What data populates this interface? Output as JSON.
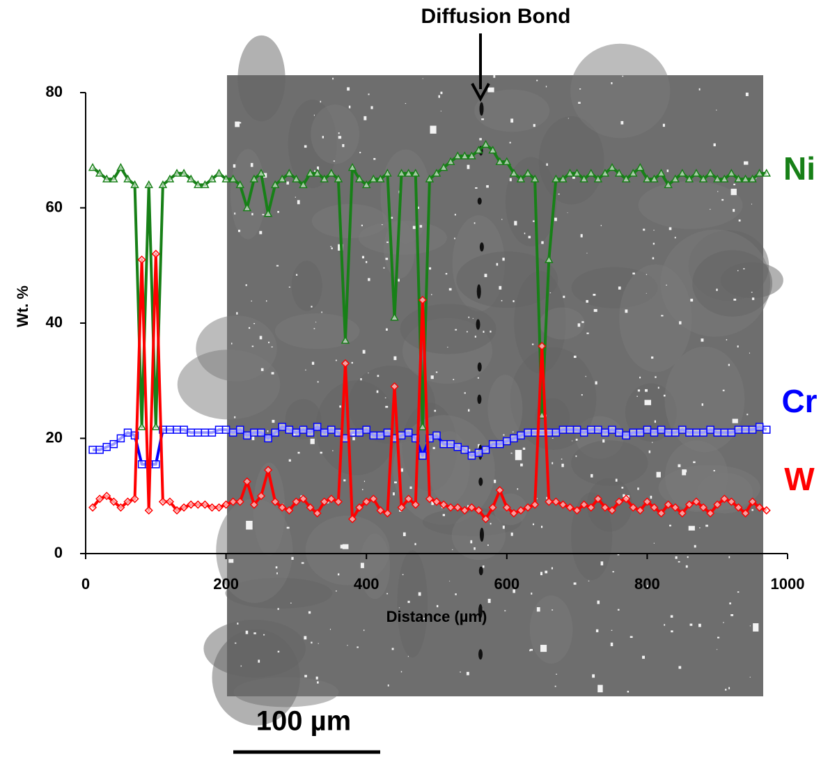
{
  "chart_data": {
    "type": "line",
    "annotation": "Diffusion Bond",
    "x_label": "Distance (µm)",
    "y_label": "Wt. %",
    "scale_bar_label": "100 µm",
    "xlim": [
      0,
      1000
    ],
    "xticks": [
      0,
      200,
      400,
      600,
      800,
      1000
    ],
    "ylim": [
      0,
      80
    ],
    "yticks": [
      0,
      20,
      40,
      60,
      80
    ],
    "x": [
      10,
      20,
      30,
      40,
      50,
      60,
      70,
      80,
      90,
      100,
      110,
      120,
      130,
      140,
      150,
      160,
      170,
      180,
      190,
      200,
      210,
      220,
      230,
      240,
      250,
      260,
      270,
      280,
      290,
      300,
      310,
      320,
      330,
      340,
      350,
      360,
      370,
      380,
      390,
      400,
      410,
      420,
      430,
      440,
      450,
      460,
      470,
      480,
      490,
      500,
      510,
      520,
      530,
      540,
      550,
      560,
      570,
      580,
      590,
      600,
      610,
      620,
      630,
      640,
      650,
      660,
      670,
      680,
      690,
      700,
      710,
      720,
      730,
      740,
      750,
      760,
      770,
      780,
      790,
      800,
      810,
      820,
      830,
      840,
      850,
      860,
      870,
      880,
      890,
      900,
      910,
      920,
      930,
      940,
      950,
      960,
      970
    ],
    "series": [
      {
        "name": "Ni",
        "color": "#178017",
        "marker": "triangle",
        "values": [
          67,
          66,
          65,
          65,
          67,
          65,
          64,
          22,
          64,
          22,
          64,
          65,
          66,
          66,
          65,
          64,
          64,
          65,
          66,
          65,
          65,
          64,
          60,
          65,
          66,
          59,
          64,
          65,
          66,
          65,
          64,
          66,
          66,
          65,
          66,
          65,
          37,
          67,
          65,
          64,
          65,
          65,
          66,
          41,
          66,
          66,
          66,
          22,
          65,
          66,
          67,
          68,
          69,
          69,
          69,
          70,
          71,
          70,
          68,
          68,
          66,
          65,
          66,
          65,
          24,
          51,
          65,
          65,
          66,
          66,
          65,
          66,
          65,
          66,
          67,
          66,
          65,
          66,
          67,
          65,
          65,
          66,
          64,
          65,
          66,
          65,
          66,
          65,
          66,
          65,
          65,
          66,
          65,
          65,
          65,
          66,
          66
        ]
      },
      {
        "name": "Cr",
        "color": "#0000ff",
        "marker": "square",
        "values": [
          18,
          18,
          18.5,
          19,
          20,
          21,
          20.5,
          15.5,
          15.5,
          15.5,
          21.5,
          21.5,
          21.5,
          21.5,
          21,
          21,
          21,
          21,
          21.5,
          21.5,
          21,
          21.5,
          20.5,
          21,
          21,
          20,
          21,
          22,
          21.5,
          21,
          21.5,
          21,
          22,
          21,
          21.5,
          21,
          20,
          21,
          21,
          21.5,
          20.5,
          20.5,
          21,
          20,
          20.5,
          21,
          20,
          17,
          20,
          20.5,
          19,
          19,
          18.5,
          18,
          17,
          17.5,
          18,
          19,
          19,
          19.5,
          20,
          20.5,
          21,
          21,
          21,
          21,
          21,
          21.5,
          21.5,
          21.5,
          21,
          21.5,
          21.5,
          21,
          21.5,
          21,
          20.5,
          21,
          21,
          21.5,
          21,
          21.5,
          21,
          21,
          21.5,
          21,
          21,
          21,
          21.5,
          21,
          21,
          21,
          21.5,
          21.5,
          21.5,
          22,
          21.5
        ]
      },
      {
        "name": "W",
        "color": "#ff0000",
        "marker": "diamond",
        "values": [
          8,
          9.5,
          10,
          9,
          8,
          9,
          9.5,
          51,
          7.5,
          52,
          9,
          9,
          7.5,
          8,
          8.5,
          8.5,
          8.5,
          8,
          8,
          8.5,
          9,
          9,
          12.5,
          8.5,
          10,
          14.5,
          9,
          8,
          7.5,
          9,
          9.5,
          8,
          7,
          9,
          9.5,
          9,
          33,
          6,
          8,
          9,
          9.5,
          7.5,
          7,
          29,
          8,
          9.5,
          8.5,
          44,
          9.5,
          9,
          8.5,
          8,
          8,
          7.5,
          8,
          7.5,
          6,
          8,
          11,
          8,
          7,
          7.5,
          8,
          8.5,
          36,
          9,
          9,
          8.5,
          8,
          7.5,
          8.5,
          8,
          9.5,
          8,
          7.5,
          9,
          9.5,
          8,
          7.5,
          9,
          8,
          7,
          8.5,
          8,
          7,
          8.5,
          9,
          8,
          7,
          8.5,
          9.5,
          9,
          8,
          7,
          9,
          8,
          7.5
        ]
      }
    ]
  }
}
